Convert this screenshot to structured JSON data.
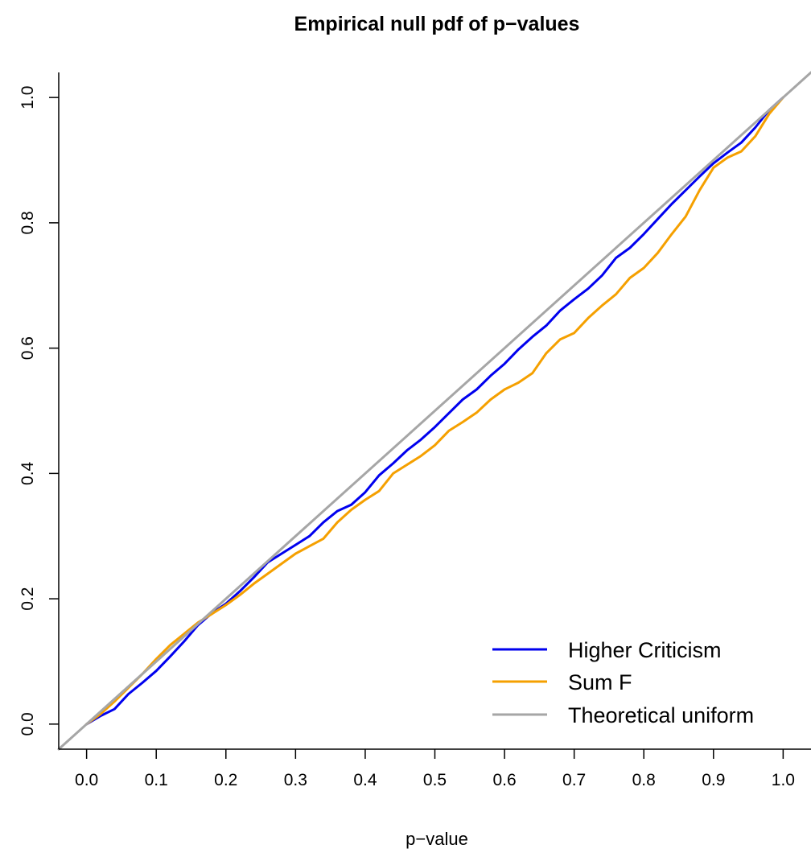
{
  "chart_data": {
    "type": "line",
    "title": "Empirical null pdf of p−values",
    "xlabel": "p−value",
    "ylabel": "",
    "xlim": [
      -0.04,
      1.04
    ],
    "ylim": [
      -0.04,
      1.04
    ],
    "x_ticks": [
      "0.0",
      "0.1",
      "0.2",
      "0.3",
      "0.4",
      "0.5",
      "0.6",
      "0.7",
      "0.8",
      "0.9",
      "1.0"
    ],
    "y_ticks": [
      "0.0",
      "0.2",
      "0.4",
      "0.6",
      "0.8",
      "1.0"
    ],
    "grid": false,
    "legend_position": "bottom-right",
    "series": [
      {
        "name": "Higher Criticism",
        "color": "#0000ee",
        "points": [
          [
            0.0,
            0.0
          ],
          [
            0.02,
            0.013
          ],
          [
            0.04,
            0.024
          ],
          [
            0.06,
            0.048
          ],
          [
            0.08,
            0.066
          ],
          [
            0.1,
            0.085
          ],
          [
            0.12,
            0.108
          ],
          [
            0.14,
            0.132
          ],
          [
            0.16,
            0.158
          ],
          [
            0.18,
            0.177
          ],
          [
            0.2,
            0.192
          ],
          [
            0.22,
            0.212
          ],
          [
            0.24,
            0.234
          ],
          [
            0.26,
            0.258
          ],
          [
            0.28,
            0.272
          ],
          [
            0.3,
            0.286
          ],
          [
            0.32,
            0.3
          ],
          [
            0.34,
            0.322
          ],
          [
            0.36,
            0.34
          ],
          [
            0.38,
            0.35
          ],
          [
            0.4,
            0.37
          ],
          [
            0.42,
            0.397
          ],
          [
            0.44,
            0.416
          ],
          [
            0.46,
            0.437
          ],
          [
            0.48,
            0.454
          ],
          [
            0.5,
            0.474
          ],
          [
            0.52,
            0.496
          ],
          [
            0.54,
            0.518
          ],
          [
            0.56,
            0.534
          ],
          [
            0.58,
            0.556
          ],
          [
            0.6,
            0.575
          ],
          [
            0.62,
            0.598
          ],
          [
            0.64,
            0.618
          ],
          [
            0.66,
            0.636
          ],
          [
            0.68,
            0.66
          ],
          [
            0.7,
            0.678
          ],
          [
            0.72,
            0.695
          ],
          [
            0.74,
            0.716
          ],
          [
            0.76,
            0.744
          ],
          [
            0.78,
            0.76
          ],
          [
            0.8,
            0.782
          ],
          [
            0.82,
            0.806
          ],
          [
            0.84,
            0.83
          ],
          [
            0.86,
            0.852
          ],
          [
            0.88,
            0.874
          ],
          [
            0.9,
            0.895
          ],
          [
            0.92,
            0.912
          ],
          [
            0.94,
            0.928
          ],
          [
            0.96,
            0.952
          ],
          [
            0.98,
            0.98
          ],
          [
            1.0,
            1.0
          ]
        ]
      },
      {
        "name": "Sum F",
        "color": "#f5a000",
        "points": [
          [
            0.0,
            0.0
          ],
          [
            0.02,
            0.016
          ],
          [
            0.04,
            0.036
          ],
          [
            0.06,
            0.058
          ],
          [
            0.08,
            0.08
          ],
          [
            0.1,
            0.104
          ],
          [
            0.12,
            0.126
          ],
          [
            0.14,
            0.144
          ],
          [
            0.16,
            0.162
          ],
          [
            0.18,
            0.176
          ],
          [
            0.2,
            0.19
          ],
          [
            0.22,
            0.206
          ],
          [
            0.24,
            0.224
          ],
          [
            0.26,
            0.24
          ],
          [
            0.28,
            0.256
          ],
          [
            0.3,
            0.272
          ],
          [
            0.32,
            0.284
          ],
          [
            0.34,
            0.296
          ],
          [
            0.36,
            0.322
          ],
          [
            0.38,
            0.342
          ],
          [
            0.4,
            0.358
          ],
          [
            0.42,
            0.372
          ],
          [
            0.44,
            0.4
          ],
          [
            0.46,
            0.414
          ],
          [
            0.48,
            0.428
          ],
          [
            0.5,
            0.445
          ],
          [
            0.52,
            0.468
          ],
          [
            0.54,
            0.482
          ],
          [
            0.56,
            0.497
          ],
          [
            0.58,
            0.518
          ],
          [
            0.6,
            0.534
          ],
          [
            0.62,
            0.545
          ],
          [
            0.64,
            0.56
          ],
          [
            0.66,
            0.592
          ],
          [
            0.68,
            0.614
          ],
          [
            0.7,
            0.624
          ],
          [
            0.72,
            0.648
          ],
          [
            0.74,
            0.668
          ],
          [
            0.76,
            0.686
          ],
          [
            0.78,
            0.712
          ],
          [
            0.8,
            0.728
          ],
          [
            0.82,
            0.752
          ],
          [
            0.84,
            0.782
          ],
          [
            0.86,
            0.81
          ],
          [
            0.88,
            0.852
          ],
          [
            0.9,
            0.888
          ],
          [
            0.92,
            0.904
          ],
          [
            0.94,
            0.914
          ],
          [
            0.96,
            0.938
          ],
          [
            0.98,
            0.974
          ],
          [
            1.0,
            1.0
          ]
        ]
      },
      {
        "name": "Theoretical uniform",
        "color": "#a6a6a6",
        "points": [
          [
            -0.04,
            -0.04
          ],
          [
            1.04,
            1.04
          ]
        ]
      }
    ]
  }
}
